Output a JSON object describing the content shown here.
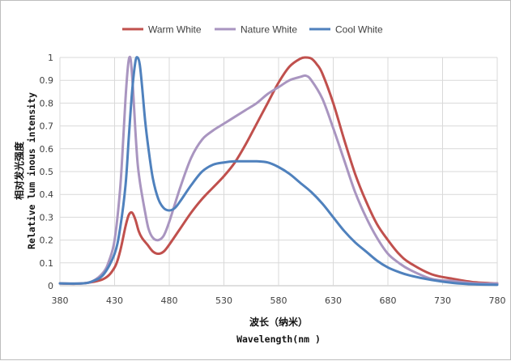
{
  "chart_data": {
    "type": "line",
    "xlabel": "波长（纳米）",
    "xlabel_en": "Wavelength(nm )",
    "ylabel": "相对发光强度",
    "ylabel_en": "Relative lum inous intensity",
    "xlim": [
      380,
      780
    ],
    "ylim": [
      0,
      1
    ],
    "x_ticks": [
      "380",
      "430",
      "480",
      "530",
      "580",
      "630",
      "680",
      "730",
      "780"
    ],
    "y_ticks": [
      "0",
      "0.1",
      "0.2",
      "0.3",
      "0.4",
      "0.5",
      "0.6",
      "0.7",
      "0.8",
      "0.9",
      "1"
    ],
    "grid": true,
    "legend_position": "top",
    "series": [
      {
        "name": "Warm White",
        "color": "#c0504d",
        "x": [
          380,
          400,
          420,
          430,
          435,
          440,
          443,
          446,
          449,
          452,
          455,
          460,
          465,
          470,
          475,
          480,
          490,
          500,
          510,
          520,
          530,
          540,
          550,
          560,
          570,
          580,
          590,
          600,
          605,
          610,
          615,
          620,
          630,
          640,
          650,
          660,
          670,
          680,
          690,
          700,
          720,
          740,
          760,
          780
        ],
        "y": [
          0.01,
          0.01,
          0.03,
          0.08,
          0.15,
          0.26,
          0.31,
          0.32,
          0.29,
          0.24,
          0.21,
          0.18,
          0.15,
          0.14,
          0.15,
          0.18,
          0.25,
          0.32,
          0.38,
          0.43,
          0.48,
          0.54,
          0.62,
          0.71,
          0.8,
          0.89,
          0.96,
          0.995,
          1.0,
          0.995,
          0.97,
          0.93,
          0.8,
          0.64,
          0.49,
          0.37,
          0.27,
          0.2,
          0.14,
          0.1,
          0.05,
          0.03,
          0.015,
          0.01
        ]
      },
      {
        "name": "Nature White",
        "color": "#a995c0",
        "x": [
          380,
          400,
          410,
          420,
          425,
          430,
          435,
          438,
          440,
          442,
          443.5,
          445,
          447,
          449,
          451,
          453,
          455,
          458,
          461,
          465,
          470,
          475,
          480,
          490,
          500,
          510,
          520,
          530,
          540,
          550,
          560,
          570,
          580,
          590,
          600,
          605,
          610,
          620,
          630,
          640,
          650,
          660,
          670,
          680,
          690,
          700,
          720,
          740,
          760,
          780
        ],
        "y": [
          0.01,
          0.01,
          0.02,
          0.06,
          0.11,
          0.2,
          0.42,
          0.65,
          0.82,
          0.95,
          1.0,
          0.98,
          0.85,
          0.68,
          0.54,
          0.46,
          0.4,
          0.32,
          0.25,
          0.21,
          0.2,
          0.22,
          0.28,
          0.43,
          0.56,
          0.64,
          0.68,
          0.71,
          0.74,
          0.77,
          0.8,
          0.84,
          0.87,
          0.9,
          0.915,
          0.92,
          0.9,
          0.82,
          0.69,
          0.55,
          0.41,
          0.3,
          0.21,
          0.14,
          0.1,
          0.07,
          0.03,
          0.02,
          0.01,
          0.01
        ]
      },
      {
        "name": "Cool White",
        "color": "#4f81bd",
        "x": [
          380,
          400,
          410,
          420,
          430,
          435,
          440,
          443,
          446,
          449,
          451,
          453,
          455,
          458,
          461,
          465,
          470,
          475,
          480,
          485,
          490,
          500,
          510,
          520,
          530,
          540,
          550,
          560,
          570,
          580,
          590,
          600,
          610,
          620,
          630,
          640,
          650,
          660,
          670,
          680,
          690,
          700,
          720,
          740,
          760,
          780
        ],
        "y": [
          0.01,
          0.01,
          0.02,
          0.05,
          0.14,
          0.25,
          0.44,
          0.65,
          0.85,
          0.98,
          1.0,
          0.97,
          0.88,
          0.72,
          0.6,
          0.47,
          0.38,
          0.34,
          0.33,
          0.34,
          0.37,
          0.44,
          0.5,
          0.53,
          0.54,
          0.545,
          0.545,
          0.545,
          0.54,
          0.52,
          0.49,
          0.45,
          0.41,
          0.36,
          0.3,
          0.24,
          0.19,
          0.15,
          0.11,
          0.08,
          0.06,
          0.045,
          0.025,
          0.012,
          0.006,
          0.004
        ]
      }
    ]
  }
}
